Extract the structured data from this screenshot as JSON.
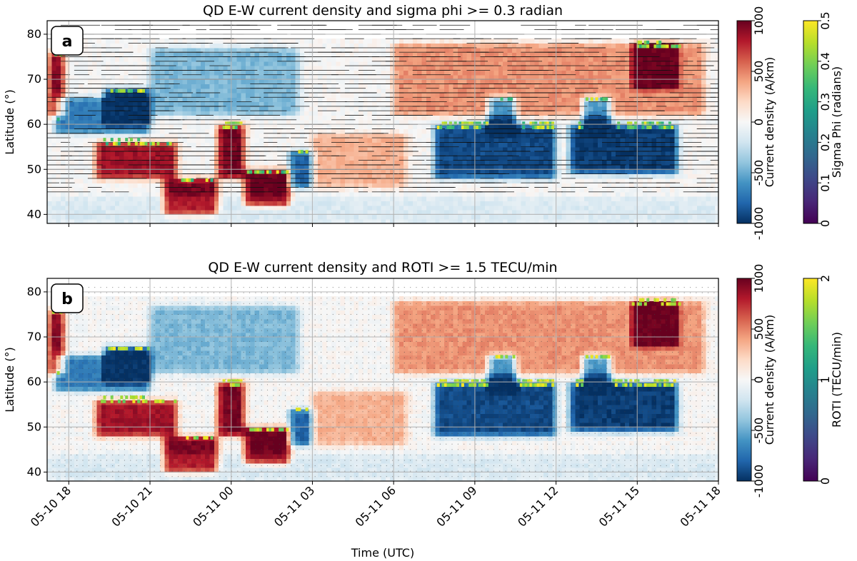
{
  "chart_data": [
    {
      "panel": "a",
      "type": "heatmap",
      "title": "QD E-W current density and sigma phi >= 0.3 radian",
      "ylabel": "Latitude (°)",
      "xlabel": "",
      "ylim": [
        38,
        83
      ],
      "yticks": [
        40,
        50,
        60,
        70,
        80
      ],
      "xlim": [
        "2024-05-10 17:12",
        "2024-05-11 18:00"
      ],
      "xticks": [
        "2024-05-10 18:00",
        "2024-05-10 21:00",
        "2024-05-11 00:00",
        "2024-05-11 03:00",
        "2024-05-11 06:00",
        "2024-05-11 09:00",
        "2024-05-11 12:00",
        "2024-05-11 15:00",
        "2024-05-11 18:00"
      ],
      "xtick_labels": [],
      "grid": true,
      "overlay": "sigma phi >= 0.3 radian points and sampled-latitude tracks",
      "colorbars": [
        {
          "label": "Current density (A/km)",
          "cmap": "RdBu_r",
          "range": [
            -1000,
            1000
          ],
          "ticks": [
            -1000,
            -500,
            0,
            500,
            1000
          ]
        },
        {
          "label": "Sigma Phi (radians)",
          "cmap": "viridis",
          "range": [
            0,
            0.5
          ],
          "ticks": [
            0,
            0.1,
            0.2,
            0.3,
            0.4,
            0.5
          ]
        }
      ]
    },
    {
      "panel": "b",
      "type": "heatmap",
      "title": "QD E-W current density and ROTI >= 1.5 TECU/min",
      "ylabel": "Latitude (°)",
      "xlabel": "Time (UTC)",
      "ylim": [
        38,
        83
      ],
      "yticks": [
        40,
        50,
        60,
        70,
        80
      ],
      "xlim": [
        "2024-05-10 17:12",
        "2024-05-11 18:00"
      ],
      "xticks": [
        "2024-05-10 18:00",
        "2024-05-10 21:00",
        "2024-05-11 00:00",
        "2024-05-11 03:00",
        "2024-05-11 06:00",
        "2024-05-11 09:00",
        "2024-05-11 12:00",
        "2024-05-11 15:00",
        "2024-05-11 18:00"
      ],
      "xtick_labels": [
        "05-10 18",
        "05-10 21",
        "05-11 00",
        "05-11 03",
        "05-11 06",
        "05-11 09",
        "05-11 12",
        "05-11 15",
        "05-11 18"
      ],
      "grid": true,
      "overlay": "ROTI >= 1.5 TECU/min points and sampled-location dots",
      "colorbars": [
        {
          "label": "Current density (A/km)",
          "cmap": "RdBu_r",
          "range": [
            -1000,
            1000
          ],
          "ticks": [
            -1000,
            -500,
            0,
            500,
            1000
          ]
        },
        {
          "label": "ROTI (TECU/min)",
          "cmap": "viridis",
          "range": [
            0,
            2
          ],
          "ticks": [
            0,
            1,
            2
          ]
        }
      ]
    }
  ],
  "current_density_features": [
    {
      "sign": "positive",
      "time": [
        "2024-05-10 17:15",
        "2024-05-10 17:50"
      ],
      "lat": [
        62,
        76
      ],
      "value": 900
    },
    {
      "sign": "negative",
      "time": [
        "2024-05-10 17:30",
        "2024-05-10 21:00"
      ],
      "lat": [
        58,
        66
      ],
      "value": -700
    },
    {
      "sign": "negative",
      "time": [
        "2024-05-10 19:20",
        "2024-05-10 21:00"
      ],
      "lat": [
        60,
        68
      ],
      "value": -1000
    },
    {
      "sign": "negative",
      "time": [
        "2024-05-10 21:00",
        "2024-05-11 02:30"
      ],
      "lat": [
        62,
        77
      ],
      "value": -450
    },
    {
      "sign": "positive",
      "time": [
        "2024-05-10 19:00",
        "2024-05-10 22:00"
      ],
      "lat": [
        48,
        56
      ],
      "value": 850
    },
    {
      "sign": "positive",
      "time": [
        "2024-05-10 21:30",
        "2024-05-10 23:30"
      ],
      "lat": [
        40,
        48
      ],
      "value": 950
    },
    {
      "sign": "positive",
      "time": [
        "2024-05-10 23:30",
        "2024-05-11 00:30"
      ],
      "lat": [
        48,
        60
      ],
      "value": 950
    },
    {
      "sign": "positive",
      "time": [
        "2024-05-11 00:30",
        "2024-05-11 02:10"
      ],
      "lat": [
        42,
        50
      ],
      "value": 1000
    },
    {
      "sign": "negative",
      "time": [
        "2024-05-11 02:10",
        "2024-05-11 03:00"
      ],
      "lat": [
        46,
        54
      ],
      "value": -800
    },
    {
      "sign": "positive",
      "time": [
        "2024-05-11 03:00",
        "2024-05-11 06:30"
      ],
      "lat": [
        46,
        58
      ],
      "value": 350
    },
    {
      "sign": "positive",
      "time": [
        "2024-05-11 06:00",
        "2024-05-11 17:30"
      ],
      "lat": [
        62,
        78
      ],
      "value": 450
    },
    {
      "sign": "negative",
      "time": [
        "2024-05-11 07:30",
        "2024-05-11 12:00"
      ],
      "lat": [
        48,
        60
      ],
      "value": -900
    },
    {
      "sign": "negative",
      "time": [
        "2024-05-11 09:30",
        "2024-05-11 10:30"
      ],
      "lat": [
        58,
        66
      ],
      "value": -1000
    },
    {
      "sign": "negative",
      "time": [
        "2024-05-11 12:30",
        "2024-05-11 16:30"
      ],
      "lat": [
        49,
        60
      ],
      "value": -950
    },
    {
      "sign": "negative",
      "time": [
        "2024-05-11 13:00",
        "2024-05-11 14:00"
      ],
      "lat": [
        58,
        66
      ],
      "value": -1000
    },
    {
      "sign": "positive",
      "time": [
        "2024-05-11 14:50",
        "2024-05-11 16:30"
      ],
      "lat": [
        68,
        78
      ],
      "value": 850
    },
    {
      "sign": "negative",
      "time": [
        "2024-05-10 17:12",
        "2024-05-11 18:00"
      ],
      "lat": [
        38,
        44
      ],
      "value": -150
    }
  ],
  "colors": {
    "rdbu": [
      "#053061",
      "#2166ac",
      "#4393c3",
      "#92c5de",
      "#d1e5f0",
      "#f7f7f7",
      "#fddbc7",
      "#f4a582",
      "#d6604d",
      "#b2182b",
      "#67001f"
    ],
    "viridis": [
      "#440154",
      "#482878",
      "#3e4989",
      "#31688e",
      "#26828e",
      "#1f9e89",
      "#35b779",
      "#6ece58",
      "#b5de2b",
      "#fde725"
    ],
    "grid": "#b0b0b0"
  }
}
